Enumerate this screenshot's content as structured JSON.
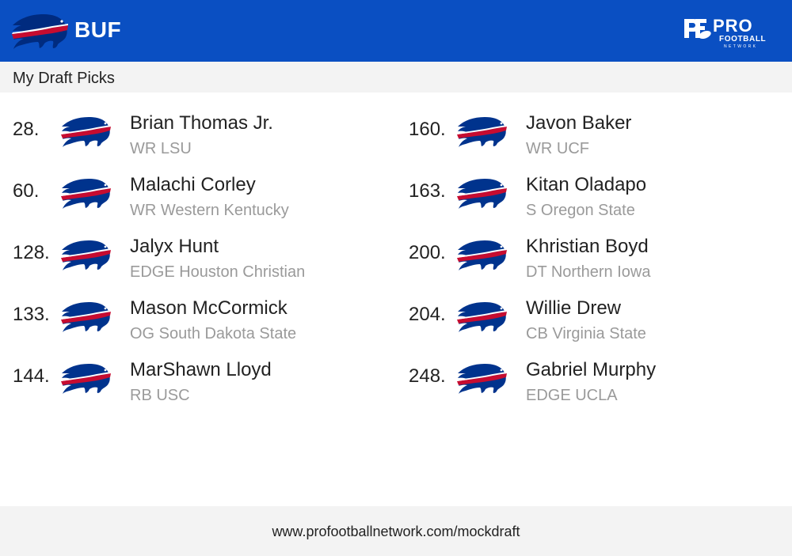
{
  "header": {
    "team_abbr": "BUF",
    "team_logo_icon": "buffalo-bills-logo-icon",
    "brand_logo_icon": "pro-football-network-logo-icon",
    "brand_text": "PRO",
    "brand_subtext": "FOOTBALL",
    "brand_subtext2": "NETWORK",
    "background_color": "#0a4fc2"
  },
  "subheader": {
    "title": "My Draft Picks"
  },
  "picks_left": [
    {
      "number": "28.",
      "name": "Brian Thomas Jr.",
      "detail": "WR LSU"
    },
    {
      "number": "60.",
      "name": "Malachi Corley",
      "detail": "WR Western Kentucky"
    },
    {
      "number": "128.",
      "name": "Jalyx Hunt",
      "detail": "EDGE Houston Christian"
    },
    {
      "number": "133.",
      "name": "Mason McCormick",
      "detail": "OG South Dakota State"
    },
    {
      "number": "144.",
      "name": "MarShawn Lloyd",
      "detail": "RB USC"
    }
  ],
  "picks_right": [
    {
      "number": "160.",
      "name": "Javon Baker",
      "detail": "WR UCF"
    },
    {
      "number": "163.",
      "name": "Kitan Oladapo",
      "detail": "S Oregon State"
    },
    {
      "number": "200.",
      "name": "Khristian Boyd",
      "detail": "DT Northern Iowa"
    },
    {
      "number": "204.",
      "name": "Willie Drew",
      "detail": "CB Virginia State"
    },
    {
      "number": "248.",
      "name": "Gabriel Murphy",
      "detail": "EDGE UCLA"
    }
  ],
  "footer": {
    "url": "www.profootballnetwork.com/mockdraft"
  },
  "colors": {
    "bills_blue": "#00338d",
    "bills_red": "#c60c30"
  }
}
